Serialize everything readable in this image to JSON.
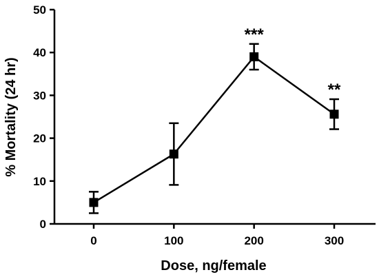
{
  "chart_data": {
    "type": "line",
    "title": "",
    "xlabel": "Dose, ng/female",
    "ylabel": "% Mortality (24 hr)",
    "ylim": [
      0,
      50
    ],
    "y_ticks": [
      0,
      10,
      20,
      30,
      40,
      50
    ],
    "x_ticks": [
      0,
      100,
      200,
      300
    ],
    "grid": false,
    "legend": "none",
    "series": [
      {
        "x": [
          0,
          100,
          200,
          300
        ],
        "y": [
          5,
          16.3,
          39,
          25.6
        ],
        "error": [
          2.5,
          7.2,
          3.0,
          3.5
        ],
        "annotations": [
          "",
          "",
          "***",
          "**"
        ]
      }
    ],
    "colors": {
      "line": "#000000",
      "marker": "#000000"
    }
  }
}
